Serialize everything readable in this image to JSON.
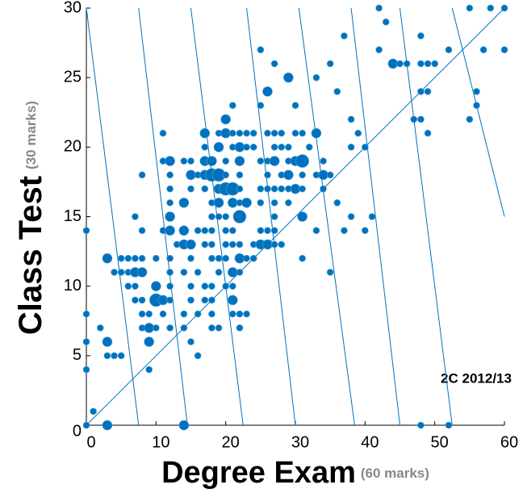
{
  "chart_data": {
    "type": "scatter",
    "x_label": "Degree Exam",
    "x_label_note": "(60 marks)",
    "y_label": "Class Test",
    "y_label_note": "(30 marks)",
    "annotation": "2C 2012/13",
    "xlim": [
      0,
      60
    ],
    "ylim": [
      0,
      30
    ],
    "xticks": [
      0,
      10,
      20,
      30,
      40,
      50,
      60
    ],
    "yticks": [
      0,
      5,
      10,
      15,
      20,
      25,
      30
    ],
    "lines": [
      {
        "x": [
          0,
          60
        ],
        "y": [
          0,
          30
        ]
      },
      {
        "x": [
          0,
          7.5
        ],
        "y": [
          30,
          0
        ]
      },
      {
        "x": [
          7.5,
          14.5
        ],
        "y": [
          30,
          0
        ]
      },
      {
        "x": [
          15,
          22.5
        ],
        "y": [
          30,
          0
        ]
      },
      {
        "x": [
          23,
          30
        ],
        "y": [
          30,
          0
        ]
      },
      {
        "x": [
          30.5,
          38.5
        ],
        "y": [
          30,
          0
        ]
      },
      {
        "x": [
          38,
          45
        ],
        "y": [
          30,
          0
        ]
      },
      {
        "x": [
          45,
          52.5
        ],
        "y": [
          30,
          0
        ]
      },
      {
        "x": [
          52.5,
          60
        ],
        "y": [
          30,
          15
        ]
      }
    ],
    "series": [
      {
        "color": "#0072bd",
        "x": [
          42,
          55,
          58,
          60,
          43,
          37,
          48,
          25,
          42,
          52,
          57,
          60,
          27,
          35,
          44,
          45,
          46,
          48,
          49,
          50,
          29,
          33,
          26,
          36,
          48,
          49,
          56,
          21,
          25,
          30,
          56,
          20,
          38,
          47,
          48,
          55,
          11,
          17,
          19,
          20,
          21,
          22,
          23,
          24,
          26,
          27,
          28,
          30,
          31,
          33,
          39,
          49,
          17,
          19,
          21,
          22,
          23,
          24,
          27,
          28,
          29,
          32,
          38,
          40,
          11,
          12,
          14,
          15,
          17,
          18,
          20,
          22,
          25,
          26,
          27,
          29,
          30,
          31,
          34,
          8,
          12,
          15,
          16,
          17,
          18,
          19,
          20,
          22,
          26,
          28,
          29,
          31,
          33,
          34,
          35,
          12,
          15,
          17,
          19,
          20,
          21,
          22,
          25,
          26,
          27,
          28,
          29,
          30,
          31,
          34,
          12,
          14,
          18,
          19,
          21,
          22,
          23,
          25,
          27,
          29,
          36,
          7,
          12,
          18,
          19,
          20,
          22,
          27,
          31,
          38,
          41,
          0,
          8,
          11,
          12,
          14,
          16,
          17,
          18,
          20,
          21,
          25,
          26,
          27,
          33,
          37,
          40,
          13,
          14,
          15,
          17,
          18,
          20,
          21,
          22,
          24,
          25,
          26,
          27,
          28,
          3,
          5,
          6,
          7,
          8,
          10,
          12,
          15,
          18,
          19,
          20,
          22,
          23,
          24,
          31,
          4,
          5,
          6,
          7,
          8,
          12,
          14,
          16,
          19,
          21,
          22,
          35,
          6,
          7,
          10,
          12,
          15,
          17,
          18,
          20,
          21,
          7,
          8,
          10,
          11,
          12,
          15,
          17,
          18,
          21,
          0,
          8,
          9,
          11,
          14,
          16,
          18,
          21,
          22,
          23,
          2,
          8,
          9,
          10,
          12,
          14,
          18,
          19,
          22,
          0,
          3,
          9,
          15,
          3,
          4,
          5,
          16,
          0,
          9,
          1,
          0,
          3,
          14,
          48,
          52
        ],
        "values": [
          30,
          30,
          30,
          30,
          29,
          28,
          28,
          27,
          27,
          27,
          27,
          27,
          26,
          26,
          26,
          26,
          26,
          26,
          26,
          26,
          25,
          25,
          24,
          24,
          24,
          24,
          24,
          23,
          23,
          23,
          23,
          22,
          22,
          22,
          22,
          22,
          21,
          21,
          21,
          21,
          21,
          21,
          21,
          21,
          21,
          21,
          21,
          21,
          21,
          21,
          21,
          21,
          20,
          20,
          20,
          20,
          20,
          20,
          20,
          20,
          20,
          20,
          20,
          20,
          19,
          19,
          19,
          19,
          19,
          19,
          19,
          19,
          19,
          19,
          19,
          19,
          19,
          19,
          19,
          18,
          18,
          18,
          18,
          18,
          18,
          18,
          18,
          18,
          18,
          18,
          18,
          18,
          18,
          18,
          18,
          17,
          17,
          17,
          17,
          17,
          17,
          17,
          17,
          17,
          17,
          17,
          17,
          17,
          17,
          17,
          16,
          16,
          16,
          16,
          16,
          16,
          16,
          16,
          16,
          16,
          16,
          15,
          15,
          15,
          15,
          15,
          15,
          15,
          15,
          15,
          15,
          14,
          14,
          14,
          14,
          14,
          14,
          14,
          14,
          14,
          14,
          14,
          14,
          14,
          14,
          14,
          14,
          13,
          13,
          13,
          13,
          13,
          13,
          13,
          13,
          13,
          13,
          13,
          13,
          13,
          12,
          12,
          12,
          12,
          12,
          12,
          12,
          12,
          12,
          12,
          12,
          12,
          12,
          12,
          12,
          11,
          11,
          11,
          11,
          11,
          11,
          11,
          11,
          11,
          11,
          11,
          11,
          10,
          10,
          10,
          10,
          10,
          10,
          10,
          10,
          10,
          9,
          9,
          9,
          9,
          9,
          9,
          9,
          9,
          9,
          8,
          8,
          8,
          8,
          8,
          8,
          8,
          8,
          8,
          8,
          7,
          7,
          7,
          7,
          7,
          7,
          7,
          7,
          7,
          6,
          6,
          6,
          6,
          5,
          5,
          5,
          5,
          4,
          4,
          1,
          0,
          0,
          0,
          0,
          0
        ],
        "sizes": [
          1,
          1,
          1,
          1,
          1,
          1,
          1,
          1,
          1,
          1,
          1,
          1,
          1,
          1,
          2,
          1,
          1,
          1,
          1,
          1,
          2,
          1,
          2,
          1,
          1,
          1,
          1,
          1,
          1,
          1,
          1,
          2,
          1,
          1,
          1,
          1,
          1,
          2,
          1,
          2,
          1,
          1,
          1,
          1,
          1,
          1,
          1,
          1,
          1,
          2,
          1,
          1,
          1,
          2,
          1,
          2,
          1,
          1,
          1,
          1,
          1,
          1,
          1,
          1,
          1,
          2,
          1,
          1,
          2,
          2,
          1,
          2,
          1,
          1,
          2,
          1,
          2,
          3,
          1,
          1,
          1,
          2,
          1,
          2,
          3,
          3,
          1,
          1,
          1,
          1,
          2,
          1,
          1,
          2,
          1,
          1,
          1,
          1,
          2,
          3,
          3,
          1,
          1,
          1,
          1,
          1,
          1,
          2,
          1,
          1,
          1,
          2,
          1,
          2,
          2,
          1,
          2,
          1,
          1,
          1,
          1,
          1,
          2,
          1,
          1,
          1,
          3,
          1,
          2,
          1,
          1,
          1,
          1,
          1,
          2,
          2,
          1,
          1,
          1,
          1,
          1,
          1,
          1,
          1,
          1,
          1,
          1,
          1,
          2,
          2,
          1,
          1,
          1,
          1,
          1,
          1,
          2,
          2,
          1,
          1,
          2,
          1,
          1,
          1,
          1,
          1,
          1,
          1,
          1,
          1,
          1,
          2,
          1,
          1,
          1,
          1,
          1,
          1,
          2,
          2,
          1,
          1,
          1,
          1,
          2,
          1,
          1,
          1,
          1,
          2,
          1,
          1,
          1,
          1,
          1,
          1,
          1,
          1,
          3,
          2,
          1,
          1,
          1,
          1,
          2,
          1,
          1,
          1,
          1,
          1,
          1,
          1,
          1,
          1,
          1,
          1,
          1,
          2,
          1,
          1,
          1,
          1,
          1,
          1,
          1,
          2,
          2,
          1,
          1,
          1,
          1,
          1,
          1,
          1,
          1,
          1,
          2,
          2,
          1,
          1
        ]
      }
    ]
  }
}
